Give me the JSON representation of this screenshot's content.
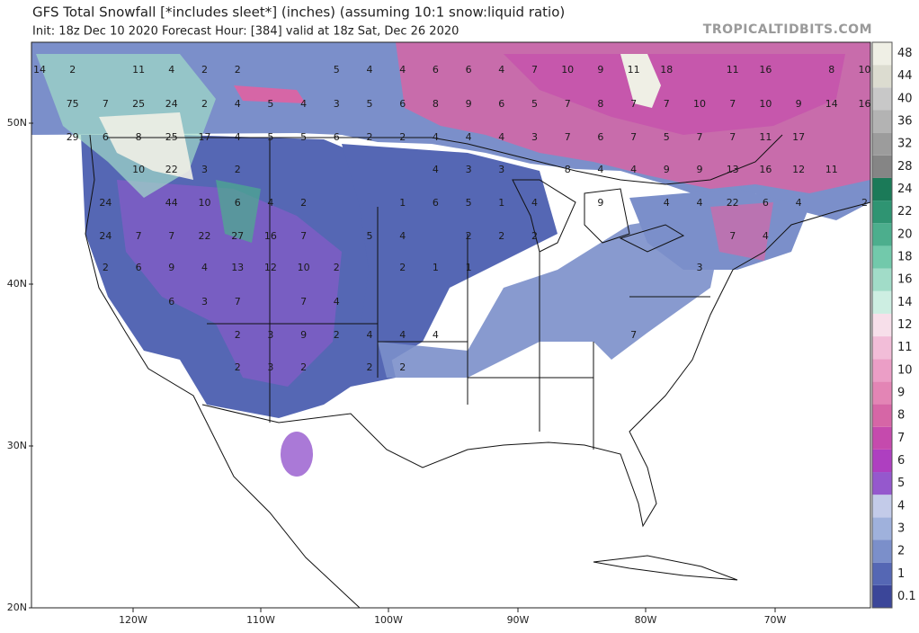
{
  "header": {
    "title": "GFS Total Snowfall [*includes sleet*] (inches) (assuming 10:1 snow:liquid ratio)",
    "subtitle": "Init: 18z Dec 10 2020   Forecast Hour: [384]   valid at 18z Sat, Dec 26 2020",
    "watermark": "TROPICALTIDBITS.COM"
  },
  "latitude_labels": [
    "50N",
    "40N",
    "30N",
    "20N"
  ],
  "longitude_labels": [
    "120W",
    "110W",
    "100W",
    "90W",
    "80W",
    "70W"
  ],
  "colorbar": {
    "levels": [
      0.1,
      1,
      2,
      3,
      4,
      5,
      6,
      7,
      8,
      9,
      10,
      11,
      12,
      14,
      16,
      18,
      20,
      22,
      24,
      28,
      32,
      36,
      40,
      44,
      48
    ],
    "colors": [
      "#3b4699",
      "#5567b4",
      "#7b8fca",
      "#9fb1dc",
      "#c3cbe9",
      "#9558cd",
      "#ae3fc0",
      "#c54aad",
      "#d666a6",
      "#e385b5",
      "#eb9ec6",
      "#f2bdd8",
      "#f7dfea",
      "#cdeee2",
      "#a1dcc8",
      "#72c9ab",
      "#4cae8d",
      "#2f9472",
      "#1b7a58",
      "#858585",
      "#9c9c9c",
      "#b3b3b3",
      "#c8c8c8",
      "#dcdcd0",
      "#efefe5"
    ]
  },
  "map_labels": [
    [
      14,
      2,
      11,
      4,
      2,
      2,
      5,
      4,
      4,
      6,
      6,
      4,
      7,
      10,
      9,
      11,
      18,
      11,
      16,
      8,
      10
    ],
    [
      75,
      7,
      25,
      24,
      2,
      4,
      5,
      4,
      3,
      5,
      6,
      8,
      9,
      6,
      5,
      7,
      8,
      7,
      7,
      10,
      7,
      10,
      9,
      14,
      16
    ],
    [
      29,
      6,
      8,
      25,
      17,
      4,
      5,
      5,
      6,
      2,
      2,
      4,
      4,
      4,
      3,
      7,
      6,
      7,
      5,
      7,
      7,
      11,
      17
    ],
    [
      10,
      22,
      3,
      2,
      4,
      3,
      3,
      8,
      4,
      4,
      9,
      9,
      13,
      16,
      12,
      11
    ],
    [
      24,
      44,
      10,
      6,
      4,
      2,
      1,
      6,
      5,
      1,
      4,
      9,
      4,
      4,
      22,
      6,
      4,
      2
    ],
    [
      24,
      7,
      7,
      22,
      27,
      16,
      7,
      5,
      4,
      2,
      2,
      2,
      7,
      4
    ],
    [
      2,
      6,
      9,
      4,
      13,
      12,
      10,
      2,
      2,
      1,
      1,
      3
    ],
    [
      6,
      3,
      7,
      7,
      4
    ],
    [
      2,
      3,
      9,
      2,
      4,
      4,
      4,
      7
    ],
    [
      2,
      3,
      2,
      2,
      2
    ]
  ]
}
